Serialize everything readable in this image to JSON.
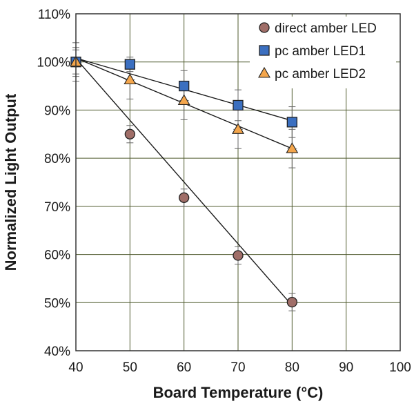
{
  "chart_data": {
    "type": "scatter",
    "title": "",
    "xlabel": "Board Temperature (°C)",
    "ylabel": "Normalized Light Output",
    "xlim": [
      40,
      100
    ],
    "ylim": [
      40,
      110
    ],
    "x_ticks": [
      "40",
      "50",
      "60",
      "70",
      "80",
      "90",
      "100"
    ],
    "y_ticks": [
      "40%",
      "50%",
      "60%",
      "70%",
      "80%",
      "90%",
      "100%",
      "110%"
    ],
    "grid": true,
    "legend_position": "top-right",
    "x": [
      40,
      50,
      60,
      70,
      80
    ],
    "series": [
      {
        "name": "direct amber LED",
        "marker": "circle",
        "color": "#a06e68",
        "values": [
          100,
          85,
          71.8,
          59.8,
          50.1
        ],
        "error": [
          2.5,
          1.8,
          1.8,
          1.8,
          1.8
        ],
        "fit_line": [
          [
            40,
            100.7
          ],
          [
            80,
            49.4
          ]
        ]
      },
      {
        "name": "pc amber LED1",
        "marker": "square",
        "color": "#3b6fc0",
        "values": [
          100,
          99.5,
          95,
          91,
          87.5
        ],
        "error": [
          4.0,
          1.5,
          3.2,
          3.2,
          3.2
        ],
        "fit_line": [
          [
            40,
            100.8
          ],
          [
            80,
            87.8
          ]
        ]
      },
      {
        "name": "pc amber LED2",
        "marker": "triangle",
        "color": "#f4a64c",
        "values": [
          100,
          96.3,
          92,
          86,
          82
        ],
        "error": [
          3.0,
          4.0,
          4.0,
          4.0,
          4.0
        ],
        "fit_line": [
          [
            40,
            100.8
          ],
          [
            80,
            82.0
          ]
        ]
      }
    ]
  }
}
